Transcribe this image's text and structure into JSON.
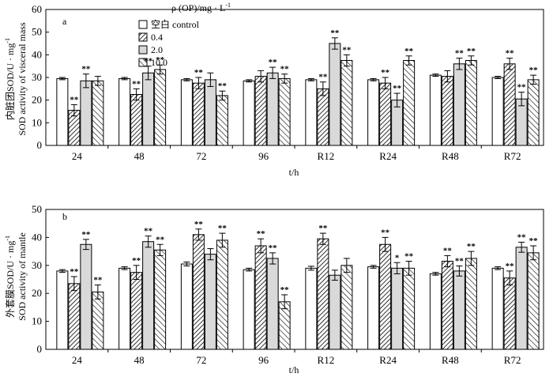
{
  "legend": {
    "title": "ρ (OP)/mg · L",
    "title_sup": "-1",
    "entries": [
      "空白 control",
      "0.4",
      "2.0",
      "10.0"
    ]
  },
  "chart_data": [
    {
      "type": "bar",
      "panel_label": "a",
      "ylabel_cn": "内脏团SOD/U · mg",
      "ylabel_cn_sup": "-1",
      "ylabel_en": "SOD activity of visceral mass",
      "xlabel": "t/h",
      "ylim": [
        0,
        60
      ],
      "yticks": [
        0,
        10,
        20,
        30,
        40,
        50,
        60
      ],
      "categories": [
        "24",
        "48",
        "72",
        "96",
        "R12",
        "R24",
        "R48",
        "R72"
      ],
      "series": [
        {
          "name": "空白 control",
          "values": [
            29.5,
            29.5,
            29.0,
            28.5,
            29.0,
            29.0,
            31.0,
            30.0
          ],
          "errors": [
            0.5,
            0.5,
            0.5,
            0.5,
            0.5,
            0.5,
            0.5,
            0.5
          ]
        },
        {
          "name": "0.4",
          "values": [
            15.5,
            22.5,
            27.5,
            30.5,
            25.0,
            27.5,
            30.5,
            36.0
          ],
          "errors": [
            2.5,
            2.5,
            2.5,
            2.5,
            3.0,
            2.5,
            2.5,
            2.5
          ]
        },
        {
          "name": "2.0",
          "values": [
            28.5,
            32.0,
            29.0,
            32.0,
            45.0,
            20.0,
            36.0,
            20.5
          ],
          "errors": [
            3.0,
            3.0,
            3.0,
            2.5,
            2.5,
            3.0,
            2.5,
            3.0
          ]
        },
        {
          "name": "10.0",
          "values": [
            28.5,
            33.5,
            22.0,
            29.5,
            37.5,
            37.5,
            37.5,
            29.0
          ],
          "errors": [
            2.0,
            2.0,
            2.0,
            2.0,
            2.5,
            2.0,
            2.0,
            2.0
          ]
        }
      ],
      "significance": [
        [
          "",
          "**",
          "**",
          ""
        ],
        [
          "",
          "**",
          "**",
          "**"
        ],
        [
          "",
          "**",
          "",
          "**"
        ],
        [
          "",
          "",
          "**",
          "**"
        ],
        [
          "",
          "**",
          "**",
          "**"
        ],
        [
          "",
          "**",
          "**",
          "**"
        ],
        [
          "",
          "",
          "**",
          "**"
        ],
        [
          "",
          "**",
          "**",
          "**"
        ]
      ]
    },
    {
      "type": "bar",
      "panel_label": "b",
      "ylabel_cn": "外套膜SOD/U · mg",
      "ylabel_cn_sup": "-1",
      "ylabel_en": "SOD activity of mantle",
      "xlabel": "t/h",
      "ylim": [
        0,
        50
      ],
      "yticks": [
        0,
        10,
        20,
        30,
        40,
        50
      ],
      "categories": [
        "24",
        "48",
        "72",
        "96",
        "R12",
        "R24",
        "R48",
        "R72"
      ],
      "series": [
        {
          "name": "空白 control",
          "values": [
            28.0,
            29.0,
            30.5,
            28.5,
            29.0,
            29.5,
            27.0,
            29.0
          ],
          "errors": [
            0.5,
            0.5,
            0.7,
            0.5,
            0.7,
            0.5,
            0.5,
            0.5
          ]
        },
        {
          "name": "0.4",
          "values": [
            23.5,
            27.5,
            41.0,
            37.0,
            39.5,
            37.5,
            31.5,
            25.5
          ],
          "errors": [
            2.5,
            2.5,
            2.0,
            2.5,
            2.0,
            2.5,
            2.0,
            2.5
          ]
        },
        {
          "name": "2.0",
          "values": [
            37.5,
            38.5,
            34.0,
            32.5,
            26.5,
            29.0,
            28.0,
            36.5
          ],
          "errors": [
            1.8,
            2.0,
            2.0,
            2.0,
            1.8,
            2.0,
            1.8,
            1.8
          ]
        },
        {
          "name": "10.0",
          "values": [
            20.5,
            35.5,
            39.0,
            17.0,
            30.0,
            29.0,
            32.5,
            34.5
          ],
          "errors": [
            2.5,
            2.0,
            2.5,
            2.5,
            2.5,
            2.5,
            2.5,
            2.5
          ]
        }
      ],
      "significance": [
        [
          "",
          "**",
          "**",
          "**"
        ],
        [
          "",
          "**",
          "**",
          "**"
        ],
        [
          "",
          "**",
          "",
          "**"
        ],
        [
          "",
          "**",
          "**",
          "**"
        ],
        [
          "",
          "**",
          "",
          ""
        ],
        [
          "",
          "**",
          "*",
          "**"
        ],
        [
          "",
          "**",
          "**",
          "**"
        ],
        [
          "",
          "**",
          "**",
          "**"
        ]
      ]
    }
  ]
}
